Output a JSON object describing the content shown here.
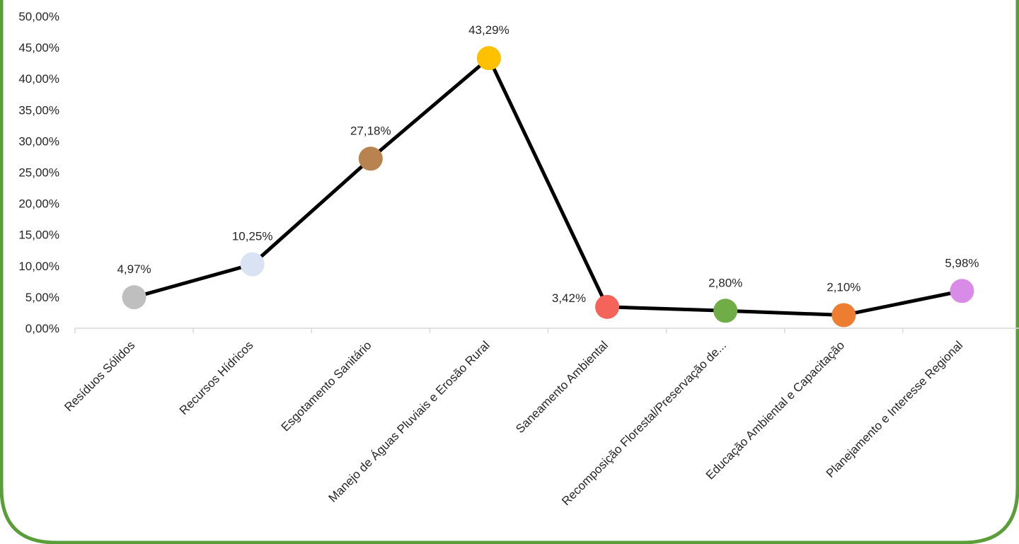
{
  "chart_data": {
    "type": "line",
    "title": "",
    "xlabel": "",
    "ylabel": "",
    "ylim": [
      0,
      50
    ],
    "ytick_step": 5,
    "ytick_labels": [
      "0,00%",
      "5,00%",
      "10,00%",
      "15,00%",
      "20,00%",
      "25,00%",
      "30,00%",
      "35,00%",
      "40,00%",
      "45,00%",
      "50,00%"
    ],
    "categories": [
      "Resíduos Sólidos",
      "Recursos Hídricos",
      "Esgotamento Sanitário",
      "Manejo de Águas Pluviais e Erosão Rural",
      "Saneamento Ambiental",
      "Recomposição Florestal/Preservação de...",
      "Educação Ambiental e Capacitação",
      "Planejamento e Interesse Regional"
    ],
    "values": [
      4.97,
      10.25,
      27.18,
      43.29,
      3.42,
      2.8,
      2.1,
      5.98
    ],
    "data_labels": [
      "4,97%",
      "10,25%",
      "27,18%",
      "43,29%",
      "3,42%",
      "2,80%",
      "2,10%",
      "5,98%"
    ],
    "point_colors": [
      "#bfbfbf",
      "#dae3f3",
      "#b8834e",
      "#ffc000",
      "#f4645a",
      "#70ad47",
      "#ed7d31",
      "#d98be8"
    ],
    "line_color": "#000000",
    "grid": false,
    "legend": "none",
    "frame_color": "#5a9e3a"
  }
}
